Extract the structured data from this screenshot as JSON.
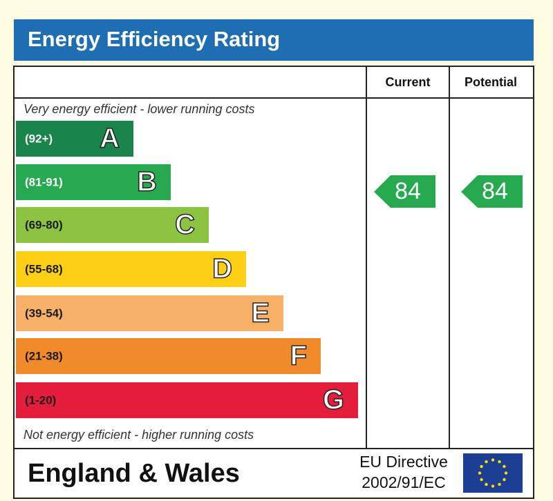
{
  "title": "Energy Efficiency Rating",
  "columns": {
    "current": "Current",
    "potential": "Potential"
  },
  "top_note": "Very energy efficient - lower running costs",
  "bottom_note": "Not energy efficient - higher running costs",
  "bands": [
    {
      "range": "(92+)",
      "letter": "A",
      "color": "#19854a",
      "text_color": "#ffffff"
    },
    {
      "range": "(81-91)",
      "letter": "B",
      "color": "#26a94f",
      "text_color": "#ffffff"
    },
    {
      "range": "(69-80)",
      "letter": "C",
      "color": "#8cc342",
      "text_color": "#1a1a1a"
    },
    {
      "range": "(55-68)",
      "letter": "D",
      "color": "#fdd016",
      "text_color": "#1a1a1a"
    },
    {
      "range": "(39-54)",
      "letter": "E",
      "color": "#f6b068",
      "text_color": "#1a1a1a"
    },
    {
      "range": "(21-38)",
      "letter": "F",
      "color": "#f08a2b",
      "text_color": "#1a1a1a"
    },
    {
      "range": "(1-20)",
      "letter": "G",
      "color": "#e31d3b",
      "text_color": "#1a1a1a"
    }
  ],
  "ratings": {
    "current": "84",
    "potential": "84",
    "color": "#26a94f"
  },
  "footer": {
    "region": "England & Wales",
    "directive_line1": "EU Directive",
    "directive_line2": "2002/91/EC"
  }
}
